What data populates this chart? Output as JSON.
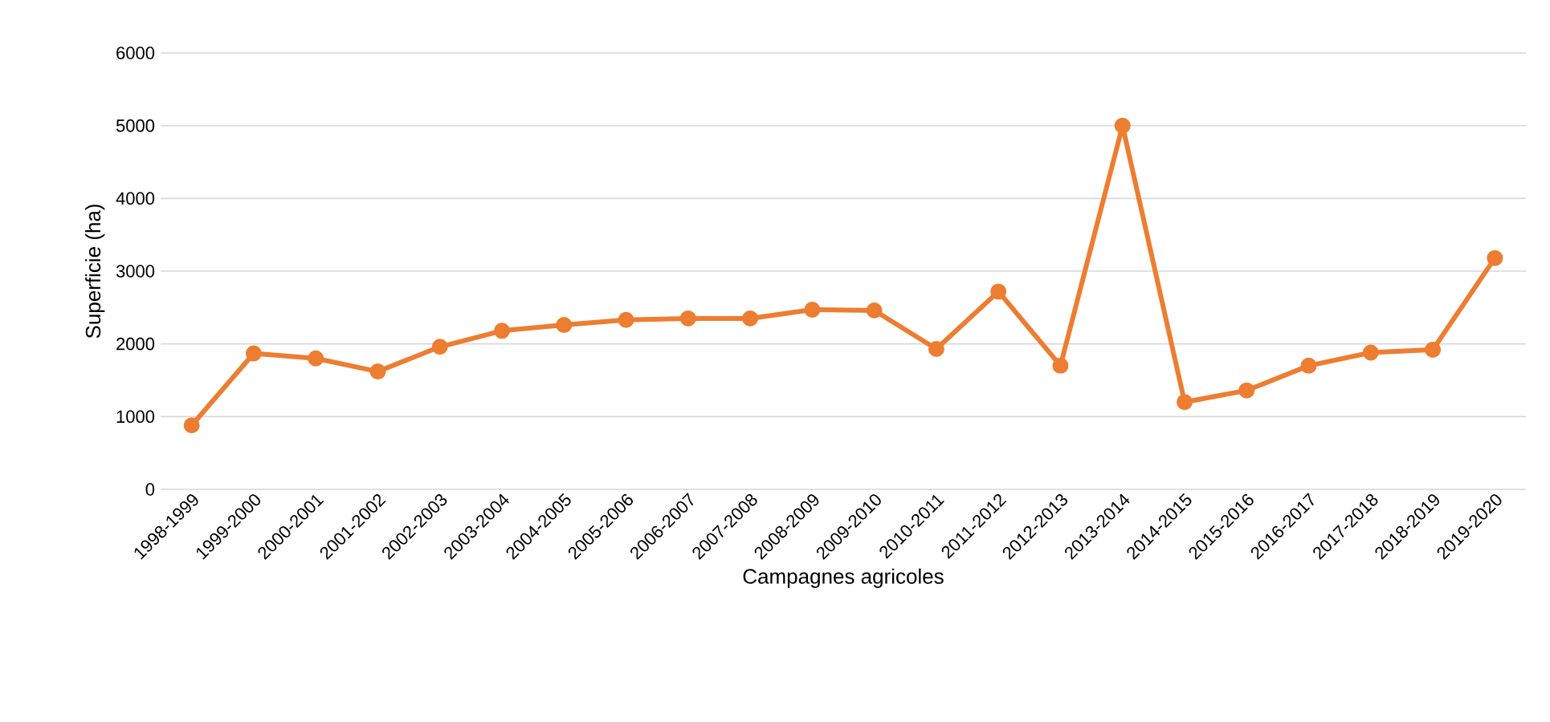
{
  "chart_data": {
    "type": "line",
    "xlabel": "Campagnes agricoles",
    "ylabel": "Superficie (ha)",
    "categories": [
      "1998-1999",
      "1999-2000",
      "2000-2001",
      "2001-2002",
      "2002-2003",
      "2003-2004",
      "2004-2005",
      "2005-2006",
      "2006-2007",
      "2007-2008",
      "2008-2009",
      "2009-2010",
      "2010-2011",
      "2011-2012",
      "2012-2013",
      "2013-2014",
      "2014-2015",
      "2015-2016",
      "2016-2017",
      "2017-2018",
      "2018-2019",
      "2019-2020"
    ],
    "values": [
      880,
      1870,
      1800,
      1620,
      1960,
      2180,
      2260,
      2330,
      2350,
      2350,
      2470,
      2460,
      1930,
      2720,
      1700,
      5000,
      1200,
      1360,
      1700,
      1880,
      1920,
      3180
    ],
    "color": "#ed7d31",
    "ylim": [
      0,
      6000
    ],
    "yticks": [
      0,
      1000,
      2000,
      3000,
      4000,
      5000,
      6000
    ],
    "grid": "y",
    "marker": "circle",
    "line_style": "solid"
  }
}
